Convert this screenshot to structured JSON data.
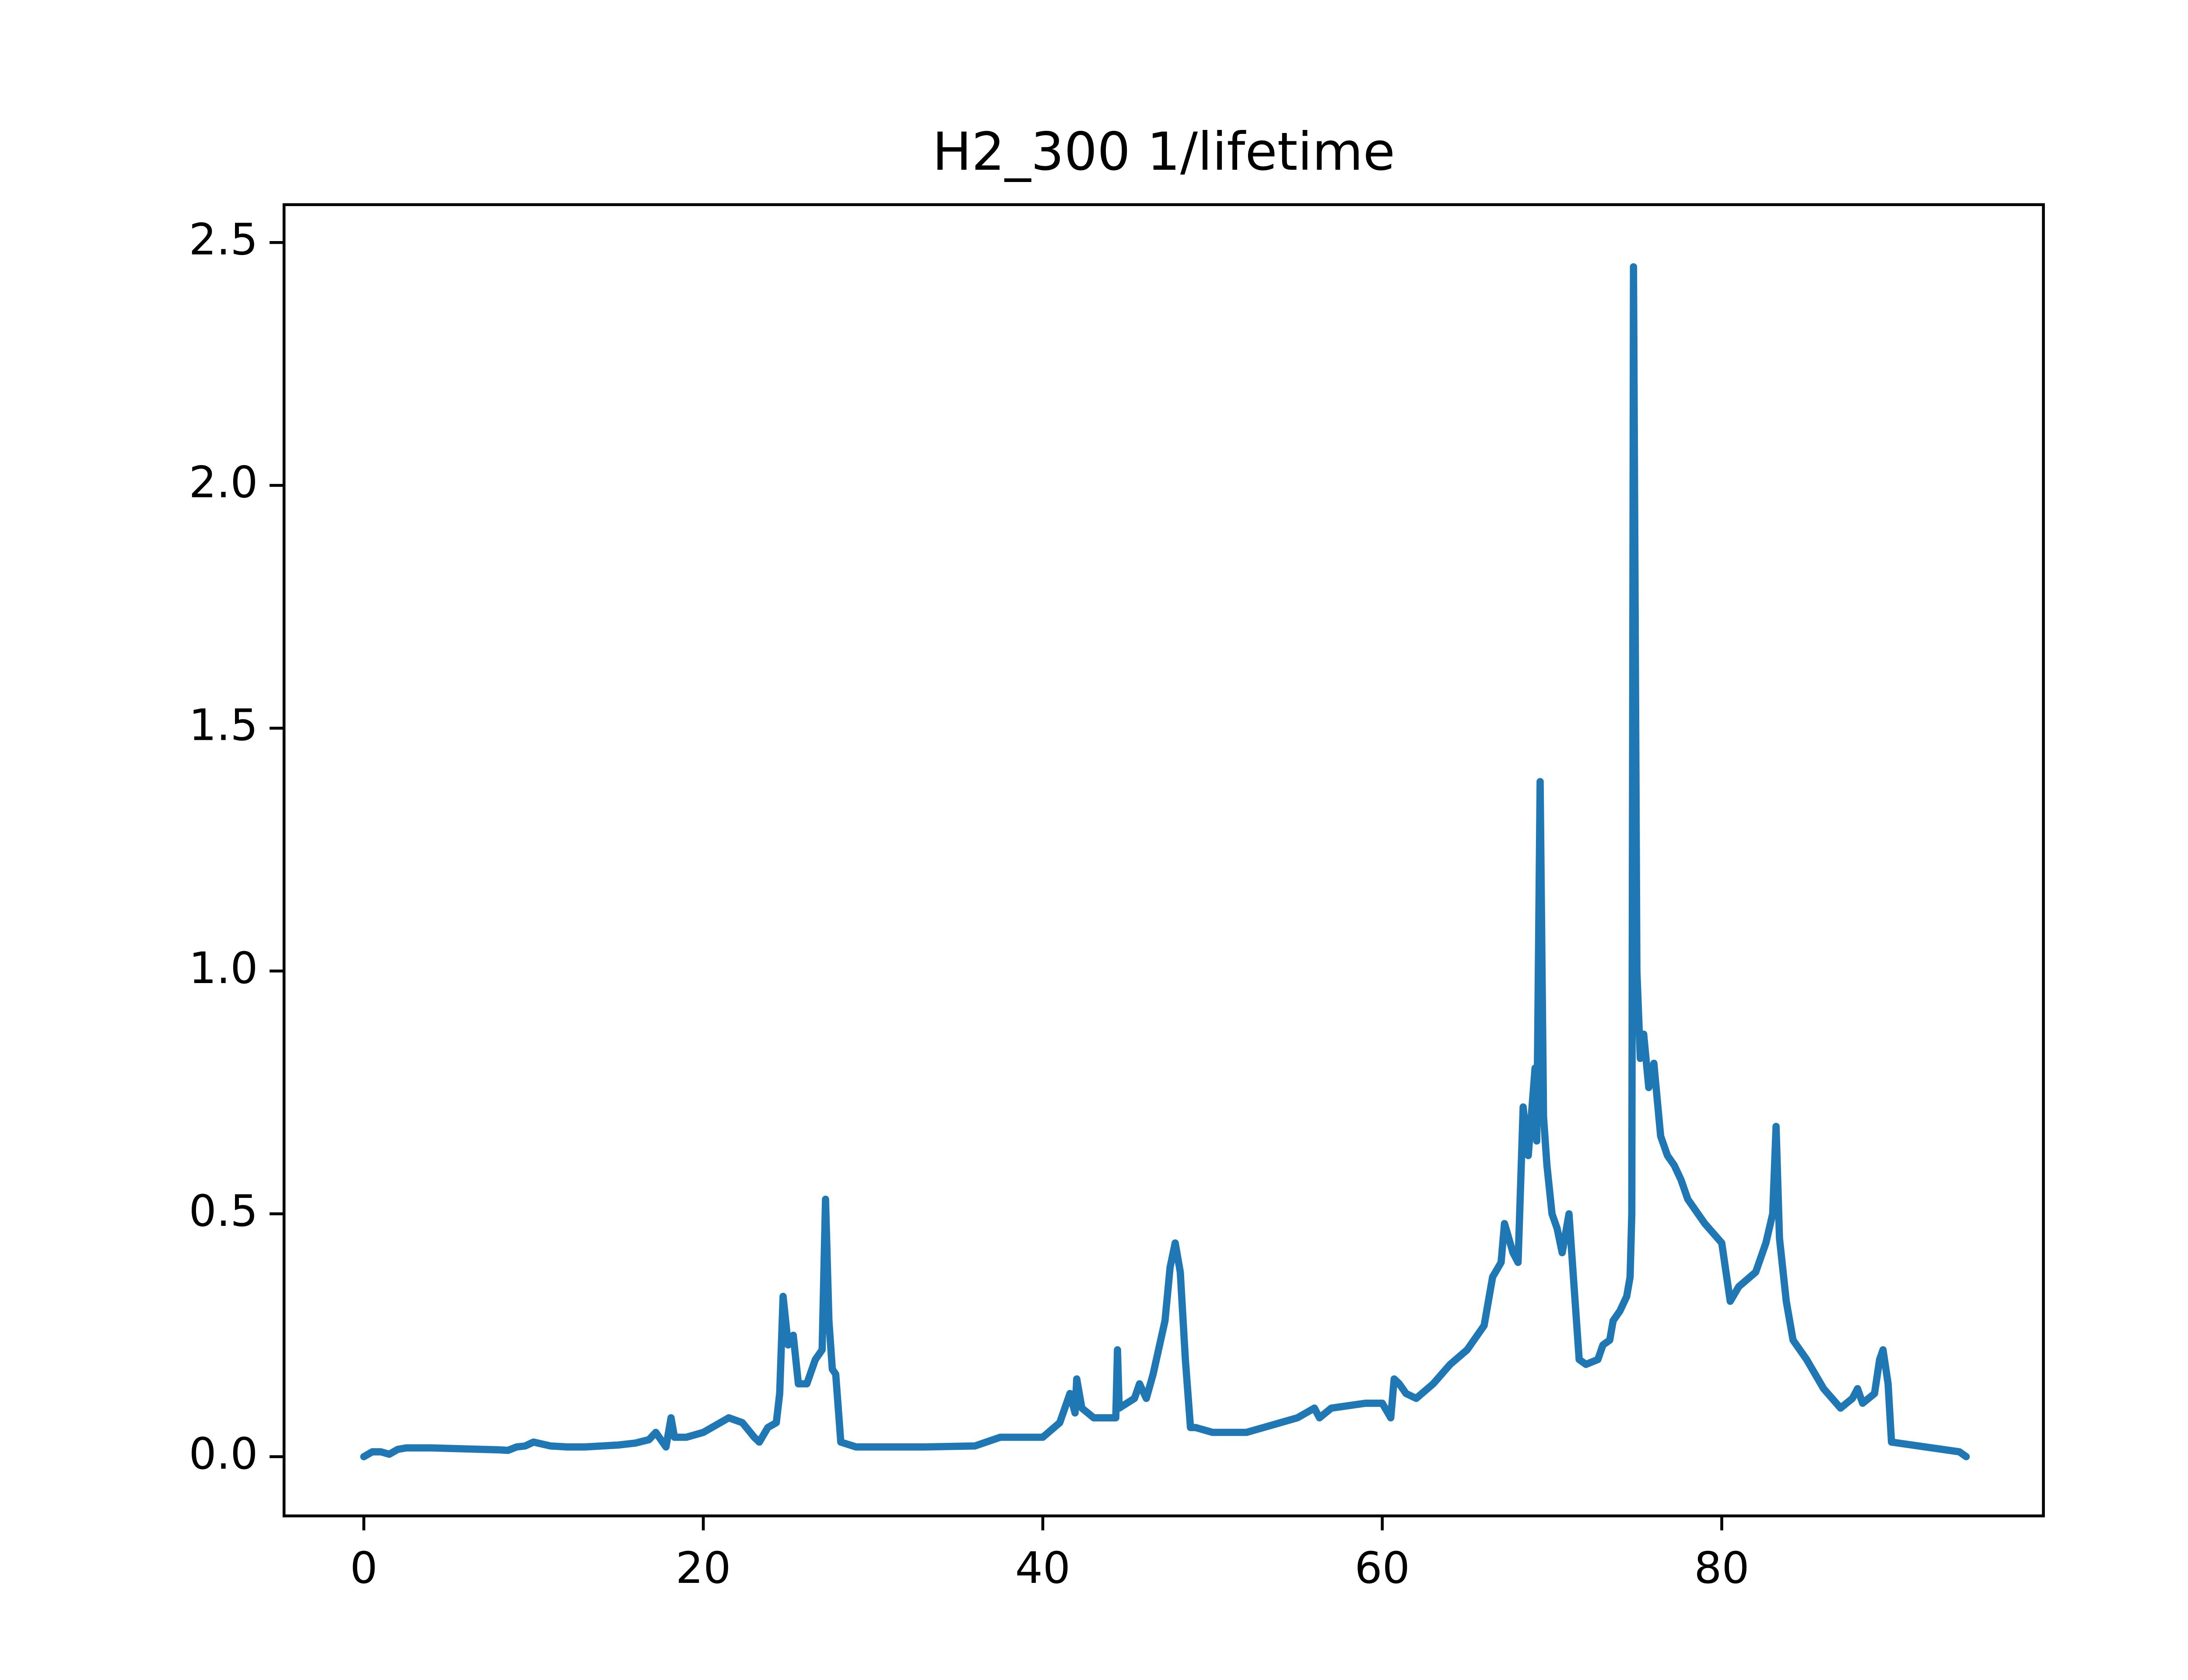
{
  "chart_data": {
    "type": "line",
    "title": "H2_300 1/lifetime",
    "x": [
      0,
      0.5,
      1,
      1.5,
      2,
      2.5,
      3,
      4,
      5,
      6,
      7,
      8,
      8.5,
      9,
      9.5,
      10,
      11,
      12,
      13,
      14,
      15,
      16,
      16.8,
      17.2,
      17.8,
      18.1,
      18.3,
      19,
      20,
      21,
      21.5,
      22.3,
      23,
      23.3,
      23.8,
      24.3,
      24.5,
      24.7,
      25,
      25.3,
      25.6,
      26.1,
      26.6,
      27,
      27.2,
      27.4,
      27.6,
      27.8,
      28.1,
      29,
      30,
      33,
      36,
      37.5,
      39,
      40,
      41,
      41.6,
      41.9,
      42,
      42.3,
      43,
      44,
      44.3,
      44.4,
      44.5,
      45.4,
      45.7,
      46.1,
      46.5,
      47.2,
      47.5,
      47.8,
      48.1,
      48.4,
      48.7,
      49,
      50,
      52,
      53,
      55,
      56,
      56.3,
      57,
      59,
      60,
      60.5,
      60.7,
      61,
      61.4,
      62,
      63,
      64,
      65,
      66,
      66.5,
      67,
      67.2,
      67.7,
      68,
      68.3,
      68.6,
      69,
      69.1,
      69.3,
      69.5,
      69.7,
      70,
      70.3,
      70.6,
      71,
      71.2,
      71.6,
      72,
      72.7,
      73,
      73.4,
      73.6,
      74,
      74.4,
      74.6,
      74.7,
      74.8,
      75,
      75.2,
      75.4,
      75.7,
      76,
      76.4,
      76.8,
      77.2,
      77.6,
      78,
      79,
      80,
      80.5,
      81,
      82,
      82.6,
      83,
      83.2,
      83.4,
      83.8,
      84.2,
      85,
      86,
      87,
      87.7,
      88,
      88.3,
      89,
      89.3,
      89.5,
      89.8,
      90,
      92,
      94,
      94.4
    ],
    "series": [
      {
        "name": "1/lifetime",
        "color": "#1f77b4",
        "values": [
          0,
          0.01,
          0.01,
          0.005,
          0.015,
          0.018,
          0.018,
          0.018,
          0.017,
          0.016,
          0.015,
          0.014,
          0.013,
          0.02,
          0.022,
          0.03,
          0.022,
          0.02,
          0.02,
          0.022,
          0.024,
          0.028,
          0.035,
          0.05,
          0.02,
          0.08,
          0.04,
          0.04,
          0.05,
          0.07,
          0.08,
          0.07,
          0.04,
          0.03,
          0.06,
          0.07,
          0.13,
          0.33,
          0.23,
          0.25,
          0.15,
          0.15,
          0.2,
          0.22,
          0.53,
          0.28,
          0.18,
          0.17,
          0.03,
          0.02,
          0.02,
          0.02,
          0.022,
          0.04,
          0.04,
          0.04,
          0.07,
          0.13,
          0.09,
          0.16,
          0.1,
          0.08,
          0.08,
          0.08,
          0.22,
          0.1,
          0.12,
          0.15,
          0.12,
          0.17,
          0.28,
          0.39,
          0.44,
          0.38,
          0.2,
          0.06,
          0.06,
          0.05,
          0.05,
          0.06,
          0.08,
          0.1,
          0.08,
          0.1,
          0.11,
          0.11,
          0.08,
          0.16,
          0.15,
          0.13,
          0.12,
          0.15,
          0.19,
          0.22,
          0.27,
          0.37,
          0.4,
          0.48,
          0.42,
          0.4,
          0.72,
          0.62,
          0.8,
          0.65,
          1.39,
          0.7,
          0.6,
          0.5,
          0.47,
          0.42,
          0.5,
          0.4,
          0.2,
          0.19,
          0.2,
          0.23,
          0.24,
          0.28,
          0.3,
          0.33,
          0.37,
          0.5,
          2.45,
          1.0,
          0.82,
          0.87,
          0.76,
          0.81,
          0.66,
          0.62,
          0.6,
          0.57,
          0.53,
          0.48,
          0.44,
          0.32,
          0.35,
          0.38,
          0.44,
          0.5,
          0.68,
          0.45,
          0.32,
          0.24,
          0.2,
          0.14,
          0.1,
          0.12,
          0.14,
          0.11,
          0.13,
          0.2,
          0.22,
          0.15,
          0.03,
          0.02,
          0.01,
          0
        ]
      }
    ],
    "xlim": [
      -4.7,
      98.95
    ],
    "ylim": [
      -0.122,
      2.578
    ],
    "xticks": [
      0,
      20,
      40,
      60,
      80
    ],
    "yticks": [
      {
        "value": 0,
        "label": "0.0"
      },
      0.5,
      {
        "value": 1,
        "label": "1.0"
      },
      1.5,
      {
        "value": 2,
        "label": "2.0"
      },
      2.5
    ],
    "grid": false
  }
}
